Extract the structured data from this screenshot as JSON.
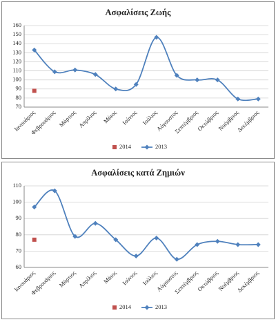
{
  "chart_data": [
    {
      "type": "line",
      "title": "Ασφαλίσεις Ζωής",
      "categories": [
        "Ιανουάριος",
        "Φεβρουάριος",
        "Μάρτιος",
        "Απρίλιος",
        "Μάιος",
        "Ιούνιος",
        "Ιούλιος",
        "Αύγουστος",
        "Σεπτέμβριος",
        "Οκτώβριος",
        "Νοέμβριος",
        "Δεκέμβριος"
      ],
      "series": [
        {
          "name": "2014",
          "color": "#c0504d",
          "marker": "square",
          "values": [
            88,
            null,
            null,
            null,
            null,
            null,
            null,
            null,
            null,
            null,
            null,
            null
          ]
        },
        {
          "name": "2013",
          "color": "#4f81bd",
          "marker": "diamond",
          "values": [
            133,
            109,
            111,
            106,
            90,
            95,
            147,
            105,
            100,
            100,
            79,
            79
          ]
        }
      ],
      "ylim": [
        70,
        160
      ],
      "yticks": [
        70,
        80,
        90,
        100,
        110,
        120,
        130,
        140,
        150,
        160
      ],
      "grid": true,
      "smooth": true,
      "legend": "bottom"
    },
    {
      "type": "line",
      "title": "Ασφαλίσεις κατά Ζημιών",
      "categories": [
        "Ιανουάριος",
        "Φεβρουάριος",
        "Μάρτιος",
        "Απρίλιος",
        "Μάιος",
        "Ιούνιος",
        "Ιούλιος",
        "Αύγουστος",
        "Σεπτέμβριος",
        "Οκτώβριος",
        "Νοέμβριος",
        "Δεκέμβριος"
      ],
      "series": [
        {
          "name": "2014",
          "color": "#c0504d",
          "marker": "square",
          "values": [
            77,
            null,
            null,
            null,
            null,
            null,
            null,
            null,
            null,
            null,
            null,
            null
          ]
        },
        {
          "name": "2013",
          "color": "#4f81bd",
          "marker": "diamond",
          "values": [
            97,
            107,
            79,
            87,
            77,
            67,
            78,
            65,
            74,
            76,
            74,
            74
          ]
        }
      ],
      "ylim": [
        60,
        110
      ],
      "yticks": [
        60,
        70,
        80,
        90,
        100,
        110
      ],
      "grid": true,
      "smooth": true,
      "legend": "bottom"
    }
  ]
}
